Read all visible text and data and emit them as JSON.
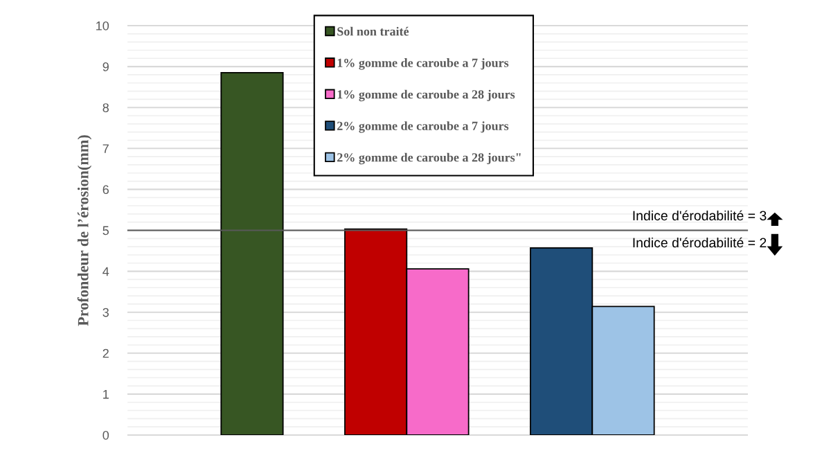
{
  "chart_data": {
    "type": "bar",
    "ylabel": "Profondeur de l’érosion(mm)",
    "categories": [
      null,
      null,
      null,
      null,
      null,
      null,
      null,
      null,
      null
    ],
    "series": [
      {
        "name": "Sol non traité",
        "color": "#375623",
        "values": [
          null,
          8.85,
          null,
          null,
          null,
          null,
          null,
          null,
          null
        ]
      },
      {
        "name": "1% gomme de caroube a 7 jours",
        "color": "#c00000",
        "values": [
          null,
          null,
          null,
          5.03,
          null,
          null,
          null,
          null,
          null
        ]
      },
      {
        "name": "1% gomme de caroube a 28 jours",
        "color": "#f76bc9",
        "values": [
          null,
          null,
          null,
          null,
          4.06,
          null,
          null,
          null,
          null
        ]
      },
      {
        "name": "2% gomme de caroube a 7 jours",
        "color": "#1f4e79",
        "values": [
          null,
          null,
          null,
          null,
          null,
          null,
          4.57,
          null,
          null
        ]
      },
      {
        "name": "2% gomme de caroube a 28 jours\"",
        "color": "#9dc3e6",
        "values": [
          null,
          null,
          null,
          null,
          null,
          null,
          null,
          3.14,
          null
        ]
      }
    ],
    "ylim": [
      0,
      10
    ],
    "yticks": [
      0,
      1,
      2,
      3,
      4,
      5,
      6,
      7,
      8,
      9,
      10
    ],
    "grid": "y",
    "legend": "top",
    "ref_lines": [
      {
        "axis": "y",
        "value": 5,
        "color": "#595959"
      }
    ],
    "annotations": [
      "Indice d'érodabilité = 3",
      "Indice d'érodabilité = 2"
    ]
  }
}
